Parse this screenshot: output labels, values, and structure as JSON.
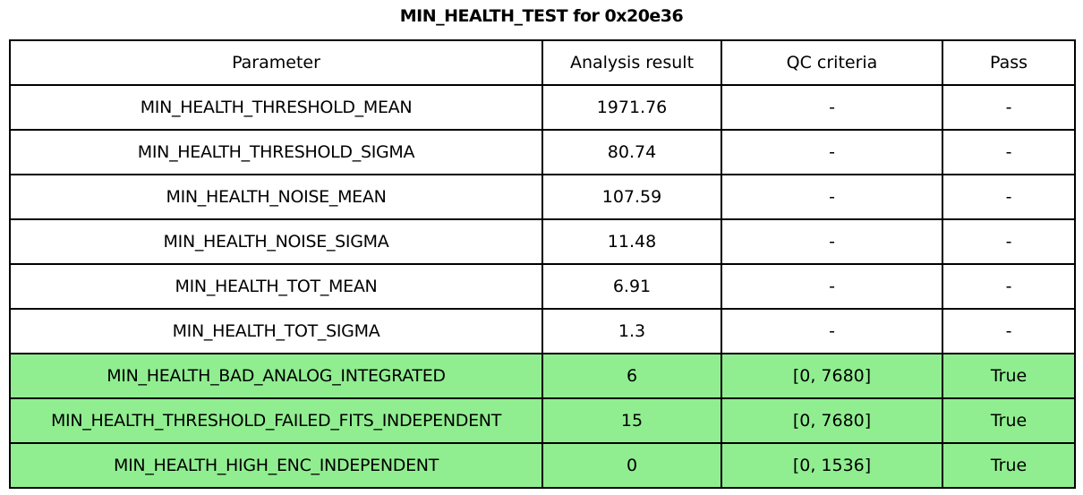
{
  "chart_data": {
    "type": "table",
    "title": "MIN_HEALTH_TEST for 0x20e36",
    "columns": [
      "Parameter",
      "Analysis result",
      "QC criteria",
      "Pass"
    ],
    "rows": [
      [
        "MIN_HEALTH_THRESHOLD_MEAN",
        "1971.76",
        "-",
        "-"
      ],
      [
        "MIN_HEALTH_THRESHOLD_SIGMA",
        "80.74",
        "-",
        "-"
      ],
      [
        "MIN_HEALTH_NOISE_MEAN",
        "107.59",
        "-",
        "-"
      ],
      [
        "MIN_HEALTH_NOISE_SIGMA",
        "11.48",
        "-",
        "-"
      ],
      [
        "MIN_HEALTH_TOT_MEAN",
        "6.91",
        "-",
        "-"
      ],
      [
        "MIN_HEALTH_TOT_SIGMA",
        "1.3",
        "-",
        "-"
      ],
      [
        "MIN_HEALTH_BAD_ANALOG_INTEGRATED",
        "6",
        "[0, 7680]",
        "True"
      ],
      [
        "MIN_HEALTH_THRESHOLD_FAILED_FITS_INDEPENDENT",
        "15",
        "[0, 7680]",
        "True"
      ],
      [
        "MIN_HEALTH_HIGH_ENC_INDEPENDENT",
        "0",
        "[0, 1536]",
        "True"
      ]
    ],
    "row_highlight": [
      false,
      false,
      false,
      false,
      false,
      false,
      true,
      true,
      true
    ],
    "highlight_color": "#90EE90",
    "layout": "header row + 9 data rows, all cells center-aligned, black 2px grid"
  },
  "colors": {
    "background": "#FFFFFF",
    "border": "#000000",
    "text": "#000000",
    "pass_row_bg": "#90EE90"
  }
}
